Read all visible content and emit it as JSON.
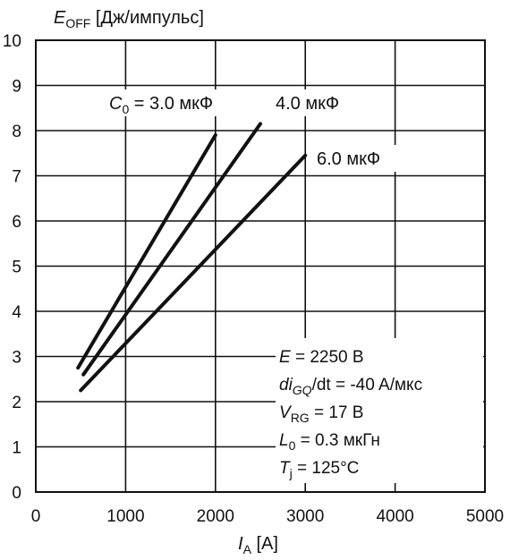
{
  "chart_data": {
    "type": "line",
    "title": "",
    "ylabel_parts": {
      "main": "E",
      "sub": "OFF",
      "unit": " [Дж/импульс]"
    },
    "xlabel_parts": {
      "main": "I",
      "sub": "A",
      "unit": " [A]"
    },
    "xlim": [
      0,
      5000
    ],
    "ylim": [
      0,
      10
    ],
    "x_ticks": [
      "0",
      "1000",
      "2000",
      "3000",
      "4000",
      "5000"
    ],
    "y_ticks": [
      "0",
      "1",
      "2",
      "3",
      "4",
      "5",
      "6",
      "7",
      "8",
      "9",
      "10"
    ],
    "grid": true,
    "series": [
      {
        "label_main": "C",
        "label_sub": "0",
        "label_rest": " = 3.0 мкФ",
        "points": [
          [
            470,
            2.75
          ],
          [
            2000,
            7.9
          ]
        ]
      },
      {
        "label_main": "",
        "label_sub": "",
        "label_rest": "4.0 мкФ",
        "points": [
          [
            530,
            2.6
          ],
          [
            2500,
            8.15
          ]
        ]
      },
      {
        "label_main": "",
        "label_sub": "",
        "label_rest": "6.0 мкФ",
        "points": [
          [
            500,
            2.25
          ],
          [
            3000,
            7.45
          ]
        ]
      }
    ],
    "conditions": [
      {
        "main": "E",
        "sub": "",
        "rest": " = 2250 B"
      },
      {
        "main": "di",
        "sub": "GQ",
        "rest": "/dt = -40 A/мкс"
      },
      {
        "main": "V",
        "sub": "RG",
        "rest": " = 17 B"
      },
      {
        "main": "L",
        "sub": "0",
        "rest": " = 0.3 мкГн"
      },
      {
        "main": "T",
        "sub": "j",
        "rest": " = 125°C"
      }
    ]
  }
}
